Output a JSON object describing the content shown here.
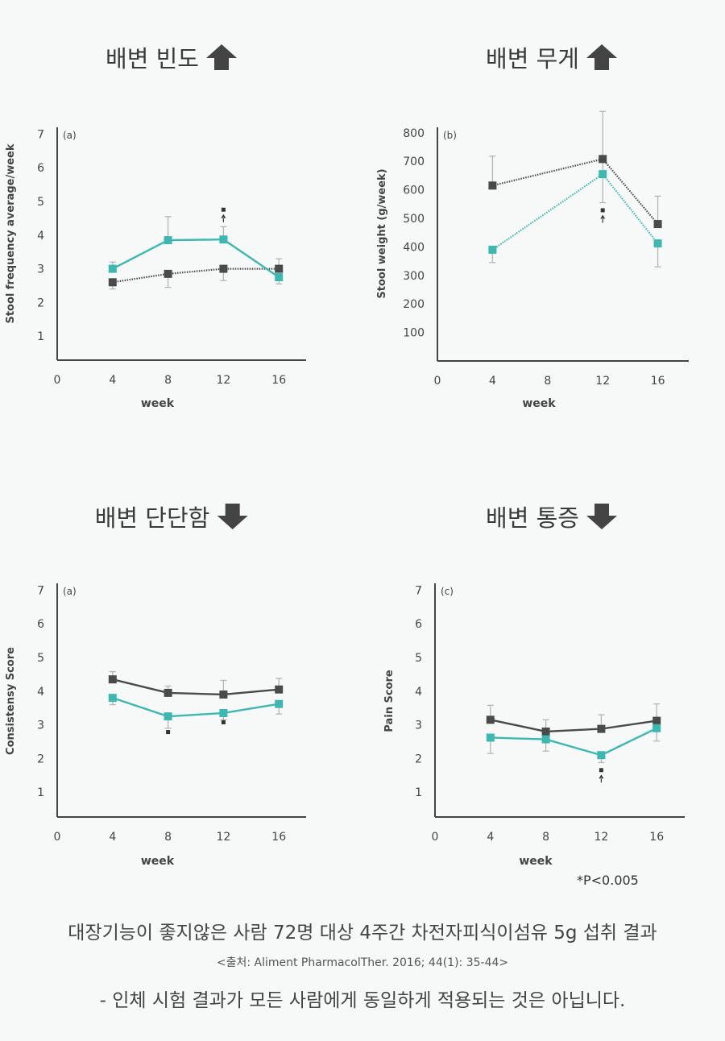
{
  "titles": [
    {
      "text": "배변 빈도",
      "arrow": "up"
    },
    {
      "text": "배변 무게",
      "arrow": "up"
    },
    {
      "text": "배변 단단함",
      "arrow": "down"
    },
    {
      "text": "배변 통증",
      "arrow": "down"
    }
  ],
  "colors": {
    "control": "#4a4a4a",
    "treatment": "#3db8b1",
    "errorbar": "#b5b5b5"
  },
  "chart_data": [
    {
      "type": "line",
      "panel": "(a)",
      "xlabel": "week",
      "ylabel": "Stool frequency average/week",
      "xticks": [
        0,
        4,
        8,
        12,
        16
      ],
      "yticks": [
        1,
        2,
        3,
        4,
        5,
        6,
        7
      ],
      "ylim": [
        0,
        7
      ],
      "series": [
        {
          "name": "control",
          "style": "dotted",
          "x": [
            4,
            8,
            12,
            16
          ],
          "values": [
            2.6,
            2.85,
            3.0,
            3.0
          ],
          "err": [
            [
              2.4,
              2.6
            ],
            [
              2.45,
              2.85
            ],
            [
              2.65,
              3.0
            ],
            [
              3.0,
              3.3
            ]
          ]
        },
        {
          "name": "treatment",
          "style": "solid",
          "x": [
            4,
            8,
            12,
            16
          ],
          "values": [
            3.0,
            3.85,
            3.87,
            2.75
          ],
          "err": [
            [
              3.0,
              3.2
            ],
            [
              3.85,
              4.55
            ],
            [
              3.87,
              4.25
            ],
            [
              2.55,
              2.75
            ]
          ]
        }
      ],
      "significance": [
        {
          "x": 12,
          "y": 4.6,
          "arrow": true
        }
      ]
    },
    {
      "type": "line",
      "panel": "(b)",
      "xlabel": "week",
      "ylabel": "Stool weight (g/week)",
      "xticks": [
        0,
        4,
        8,
        12,
        16
      ],
      "yticks": [
        100,
        200,
        300,
        400,
        500,
        600,
        700,
        800
      ],
      "ylim": [
        0,
        800
      ],
      "series": [
        {
          "name": "control",
          "style": "dotted",
          "x": [
            4,
            12,
            16
          ],
          "values": [
            615,
            708,
            480
          ],
          "err": [
            [
              615,
              718
            ],
            [
              555,
              875
            ],
            [
              480,
              578
            ]
          ]
        },
        {
          "name": "treatment",
          "style": "dotted",
          "x": [
            4,
            12,
            16
          ],
          "values": [
            390,
            655,
            412
          ],
          "err": [
            [
              345,
              390
            ],
            [
              655,
              655
            ],
            [
              330,
              412
            ]
          ]
        }
      ],
      "significance": [
        {
          "x": 12,
          "y": 510,
          "arrow": true
        }
      ]
    },
    {
      "type": "line",
      "panel": "(a)",
      "xlabel": "week",
      "ylabel": "Consistensy Score",
      "xticks": [
        0,
        4,
        8,
        12,
        16
      ],
      "yticks": [
        1,
        2,
        3,
        4,
        5,
        6,
        7
      ],
      "ylim": [
        0,
        7
      ],
      "series": [
        {
          "name": "control",
          "style": "solid",
          "x": [
            4,
            8,
            12,
            16
          ],
          "values": [
            4.35,
            3.95,
            3.9,
            4.05
          ],
          "err": [
            [
              4.35,
              4.58
            ],
            [
              3.95,
              4.15
            ],
            [
              3.9,
              4.32
            ],
            [
              4.05,
              4.38
            ]
          ]
        },
        {
          "name": "treatment",
          "style": "solid",
          "x": [
            4,
            8,
            12,
            16
          ],
          "values": [
            3.8,
            3.25,
            3.35,
            3.62
          ],
          "err": [
            [
              3.6,
              3.8
            ],
            [
              2.9,
              3.25
            ],
            [
              3.15,
              3.35
            ],
            [
              3.32,
              3.62
            ]
          ]
        }
      ],
      "significance": [
        {
          "x": 8,
          "y": 2.63,
          "arrow": false
        },
        {
          "x": 12,
          "y": 2.92,
          "arrow": false
        }
      ]
    },
    {
      "type": "line",
      "panel": "(c)",
      "xlabel": "week",
      "ylabel": "Pain Score",
      "xticks": [
        0,
        4,
        8,
        12,
        16
      ],
      "yticks": [
        1,
        2,
        3,
        4,
        5,
        6,
        7
      ],
      "ylim": [
        0,
        7
      ],
      "series": [
        {
          "name": "control",
          "style": "solid",
          "x": [
            4,
            8,
            12,
            16
          ],
          "values": [
            3.15,
            2.8,
            2.88,
            3.12
          ],
          "err": [
            [
              3.15,
              3.58
            ],
            [
              2.8,
              3.15
            ],
            [
              2.88,
              3.3
            ],
            [
              3.12,
              3.62
            ]
          ]
        },
        {
          "name": "treatment",
          "style": "solid",
          "x": [
            4,
            8,
            12,
            16
          ],
          "values": [
            2.62,
            2.57,
            2.1,
            2.9
          ],
          "err": [
            [
              2.15,
              2.62
            ],
            [
              2.22,
              2.57
            ],
            [
              1.88,
              2.1
            ],
            [
              2.52,
              2.9
            ]
          ]
        }
      ],
      "significance": [
        {
          "x": 12,
          "y": 1.5,
          "arrow": true
        }
      ],
      "footnote": "*P<0.005"
    }
  ],
  "caption": {
    "main": "대장기능이 좋지않은 사람 72명 대상 4주간 차전자피식이섬유 5g 섭취 결과",
    "source": "<출처: Aliment PharmacolTher. 2016; 44(1): 35-44>",
    "disclaimer": "- 인체 시험 결과가 모든 사람에게 동일하게 적용되는 것은 아닙니다."
  }
}
